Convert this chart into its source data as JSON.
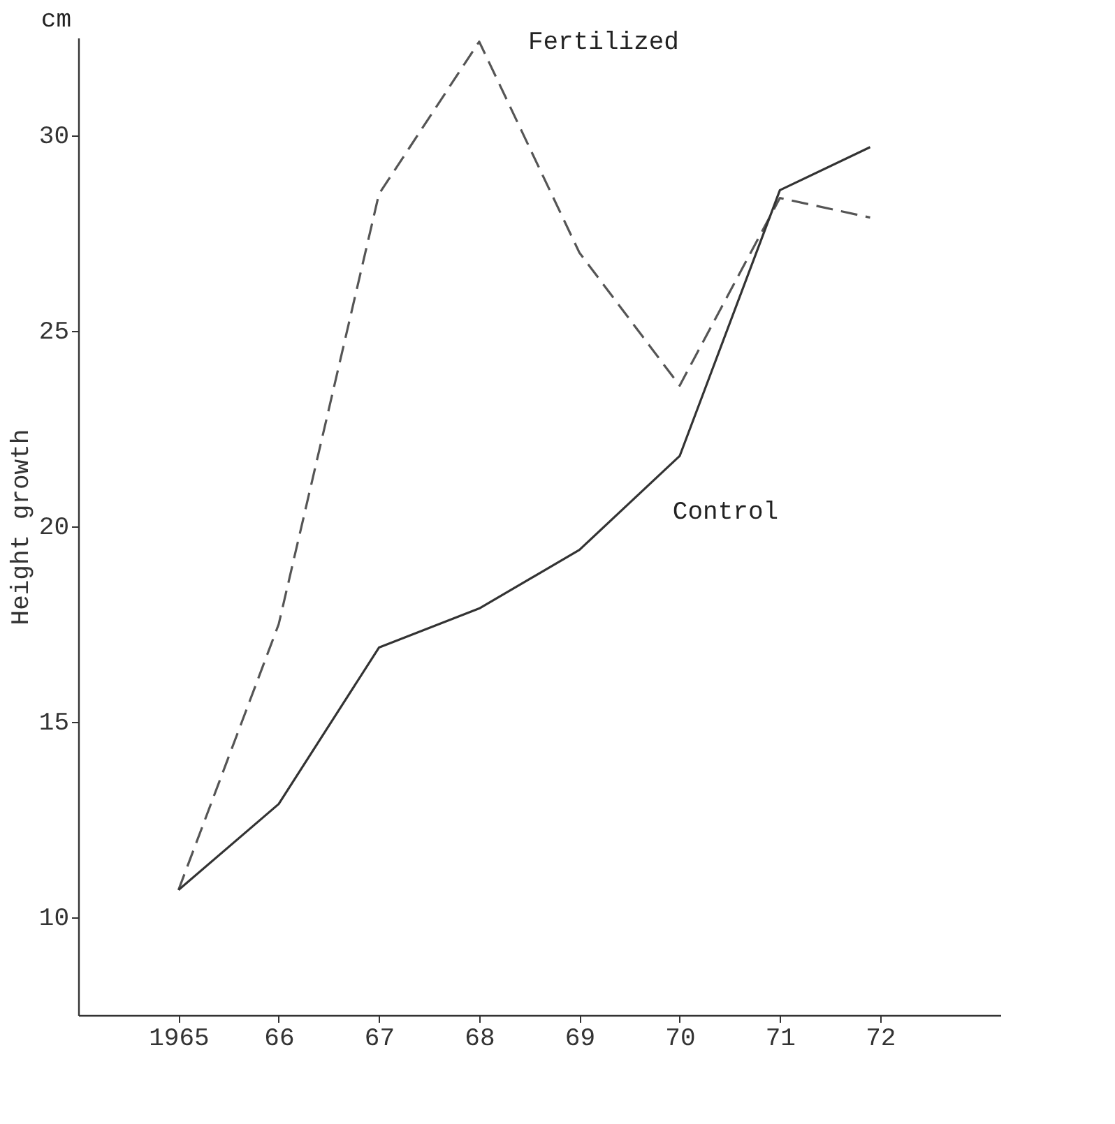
{
  "chart_data": {
    "type": "line",
    "ylabel": "Height growth",
    "annotations": [
      "cm"
    ],
    "x": [
      1965,
      1966,
      1967,
      1968,
      1969,
      1970,
      1971,
      1971.9
    ],
    "series": [
      {
        "name": "Fertilized",
        "color": "#555555",
        "line_style": "dashed",
        "values": [
          10.7,
          17.5,
          28.5,
          32.4,
          27.0,
          23.6,
          28.4,
          27.9
        ]
      },
      {
        "name": "Control",
        "color": "#333333",
        "line_style": "solid",
        "values": [
          10.7,
          12.9,
          16.9,
          17.9,
          19.4,
          21.8,
          28.6,
          29.7
        ]
      }
    ],
    "xlim": [
      1964,
      1973.2
    ],
    "ylim": [
      7.5,
      32.5
    ],
    "xticks": [
      {
        "value": 1965,
        "label": "1965"
      },
      {
        "value": 1966,
        "label": "66"
      },
      {
        "value": 1967,
        "label": "67"
      },
      {
        "value": 1968,
        "label": "68"
      },
      {
        "value": 1969,
        "label": "69"
      },
      {
        "value": 1970,
        "label": "70"
      },
      {
        "value": 1971,
        "label": "71"
      },
      {
        "value": 1972,
        "label": "72"
      }
    ],
    "yticks": [
      10,
      15,
      20,
      25,
      30
    ],
    "grid": false,
    "legend": false,
    "marker": "none"
  }
}
